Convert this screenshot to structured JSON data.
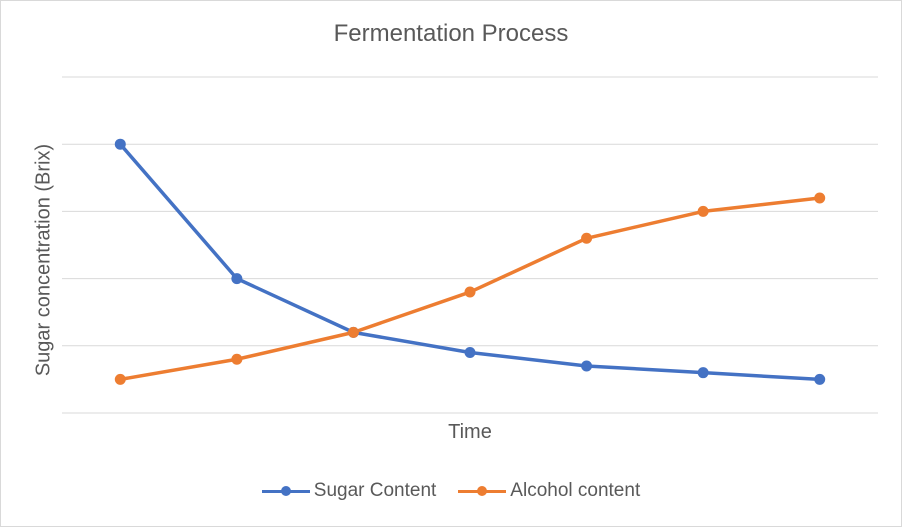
{
  "chart_data": {
    "type": "line",
    "title": "Fermentation Process",
    "xlabel": "Time",
    "ylabel": "Sugar concentration (Brix)",
    "categories": [
      "",
      "",
      "",
      "",
      "",
      "",
      ""
    ],
    "ylim": [
      0,
      5
    ],
    "grid": true,
    "legend_position": "bottom",
    "series": [
      {
        "name": "Sugar Content",
        "color": "#4472c4",
        "values": [
          4.0,
          2.0,
          1.2,
          0.9,
          0.7,
          0.6,
          0.5
        ]
      },
      {
        "name": "Alcohol content",
        "color": "#ed7d31",
        "values": [
          0.5,
          0.8,
          1.2,
          1.8,
          2.6,
          3.0,
          3.2
        ]
      }
    ]
  }
}
